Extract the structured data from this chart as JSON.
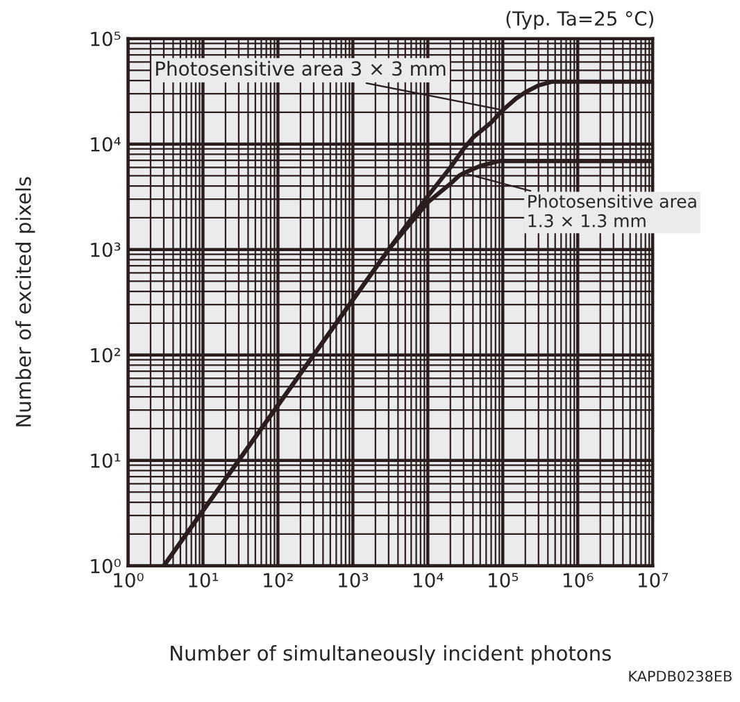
{
  "chart_data": {
    "type": "line",
    "xlabel": "Number of simultaneously incident photons",
    "ylabel": "Number of excited pixels",
    "annotations": [
      "(Typ. Ta=25 °C)",
      "KAPDB0238EB"
    ],
    "series": [
      {
        "name": "Photosensitive area 3 × 3 mm",
        "color": "#2b1d1d",
        "x": [
          3,
          30,
          300,
          3000,
          10000,
          20000,
          30000,
          40000,
          70000,
          100000,
          150000,
          200000,
          300000,
          450000,
          1000000,
          10000000
        ],
        "values": [
          1,
          10,
          100,
          1000,
          3200,
          6000,
          9000,
          11500,
          16000,
          21000,
          27000,
          31000,
          36000,
          39000,
          39000,
          39000
        ]
      },
      {
        "name": "Photosensitive area\n1.3 × 1.3 mm",
        "color": "#2b1d1d",
        "x": [
          3,
          30,
          300,
          3000,
          10000,
          20000,
          26000,
          30000,
          50000,
          90000,
          1000000,
          10000000
        ],
        "values": [
          1,
          10,
          100,
          1000,
          2800,
          4200,
          5000,
          5300,
          6200,
          6900,
          6900,
          6900
        ]
      }
    ],
    "log": "xy",
    "xlim": [
      1,
      10000000
    ],
    "ylim": [
      1,
      100000
    ],
    "xticks": [
      {
        "value": 1,
        "label": "10⁰"
      },
      {
        "value": 10,
        "label": "10¹"
      },
      {
        "value": 100,
        "label": "10²"
      },
      {
        "value": 1000,
        "label": "10³"
      },
      {
        "value": 10000,
        "label": "10⁴"
      },
      {
        "value": 100000,
        "label": "10⁵"
      },
      {
        "value": 1000000,
        "label": "10⁶"
      },
      {
        "value": 10000000,
        "label": "10⁷"
      }
    ],
    "yticks": [
      {
        "value": 1,
        "label": "10⁰"
      },
      {
        "value": 10,
        "label": "10¹"
      },
      {
        "value": 100,
        "label": "10²"
      },
      {
        "value": 1000,
        "label": "10³"
      },
      {
        "value": 10000,
        "label": "10⁴"
      },
      {
        "value": 100000,
        "label": "10⁵"
      }
    ],
    "grid": true,
    "marker": "none",
    "line_style": "solid"
  }
}
